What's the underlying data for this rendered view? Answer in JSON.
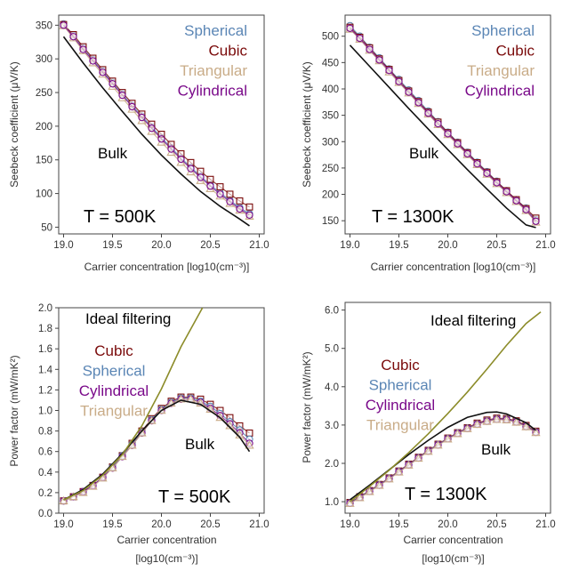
{
  "colors": {
    "Spherical": "#5b86b5",
    "Cubic": "#7a0a0a",
    "Triangular": "#c9ac88",
    "Cylindrical": "#7a0a8a",
    "Bulk": "#111111",
    "Ideal filtering": "#8c8c2a"
  },
  "chart_data": [
    {
      "type": "line",
      "panel": "top-left",
      "ylabel": "Seebeck coefficient (μV/K)",
      "xlabel": "Carrier concentration [log10(cm⁻³)]",
      "xlim": [
        18.95,
        21.05
      ],
      "ylim": [
        40,
        365
      ],
      "xticks": [
        "19.0",
        "19.5",
        "20.0",
        "20.5",
        "21.0"
      ],
      "xtick_values": [
        19.0,
        19.5,
        20.0,
        20.5,
        21.0
      ],
      "yticks": [
        "50",
        "100",
        "150",
        "200",
        "250",
        "300",
        "350"
      ],
      "ytick_values": [
        50,
        100,
        150,
        200,
        250,
        300,
        350
      ],
      "legend": [
        "Spherical",
        "Cubic",
        "Triangular",
        "Cylindrical"
      ],
      "legend_position": "top-right",
      "annotations": [
        "Bulk"
      ],
      "temperature_label": "T = 500K",
      "x": [
        19.0,
        19.1,
        19.2,
        19.3,
        19.4,
        19.5,
        19.6,
        19.7,
        19.8,
        19.9,
        20.0,
        20.1,
        20.2,
        20.3,
        20.4,
        20.5,
        20.6,
        20.7,
        20.8,
        20.9
      ],
      "series": [
        {
          "name": "Spherical",
          "marker": "circle",
          "values": [
            352,
            335,
            316,
            299,
            282,
            265,
            248,
            231,
            215,
            199,
            183,
            168,
            153,
            139,
            126,
            113,
            101,
            90,
            79,
            70
          ]
        },
        {
          "name": "Cubic",
          "marker": "square",
          "values": [
            351,
            336,
            318,
            301,
            284,
            267,
            250,
            234,
            218,
            203,
            188,
            173,
            159,
            146,
            133,
            121,
            110,
            99,
            89,
            80
          ]
        },
        {
          "name": "Triangular",
          "marker": "triangle",
          "values": [
            349,
            331,
            312,
            294,
            277,
            259,
            242,
            225,
            208,
            192,
            176,
            161,
            146,
            132,
            119,
            107,
            96,
            85,
            75,
            66
          ]
        },
        {
          "name": "Cylindrical",
          "marker": "circle",
          "values": [
            350,
            333,
            314,
            297,
            280,
            263,
            246,
            229,
            213,
            197,
            181,
            166,
            151,
            137,
            124,
            111,
            99,
            88,
            77,
            68
          ]
        },
        {
          "name": "Bulk",
          "marker": "none",
          "x": [
            19.0,
            19.2,
            19.4,
            19.6,
            19.8,
            20.0,
            20.2,
            20.4,
            20.6,
            20.8,
            20.9
          ],
          "values": [
            333,
            294,
            257,
            222,
            188,
            157,
            129,
            103,
            81,
            62,
            52
          ]
        }
      ]
    },
    {
      "type": "line",
      "panel": "top-right",
      "ylabel": "Seebeck coefficient (μV/K)",
      "xlabel": "Carrier concentration [log10(cm⁻³)]",
      "xlim": [
        18.95,
        21.05
      ],
      "ylim": [
        125,
        540
      ],
      "xticks": [
        "19.0",
        "19.5",
        "20.0",
        "20.5",
        "21.0"
      ],
      "xtick_values": [
        19.0,
        19.5,
        20.0,
        20.5,
        21.0
      ],
      "yticks": [
        "150",
        "200",
        "250",
        "300",
        "350",
        "400",
        "450",
        "500"
      ],
      "ytick_values": [
        150,
        200,
        250,
        300,
        350,
        400,
        450,
        500
      ],
      "legend": [
        "Spherical",
        "Cubic",
        "Triangular",
        "Cylindrical"
      ],
      "legend_position": "top-right",
      "annotations": [
        "Bulk"
      ],
      "temperature_label": "T = 1300K",
      "x": [
        19.0,
        19.1,
        19.2,
        19.3,
        19.4,
        19.5,
        19.6,
        19.7,
        19.8,
        19.9,
        20.0,
        20.1,
        20.2,
        20.3,
        20.4,
        20.5,
        20.6,
        20.7,
        20.8,
        20.9
      ],
      "series": [
        {
          "name": "Spherical",
          "marker": "circle",
          "values": [
            520,
            500,
            479,
            459,
            438,
            418,
            398,
            378,
            358,
            338,
            318,
            299,
            280,
            261,
            243,
            225,
            207,
            190,
            174,
            152
          ]
        },
        {
          "name": "Cubic",
          "marker": "square",
          "values": [
            517,
            498,
            478,
            457,
            437,
            416,
            396,
            376,
            356,
            337,
            317,
            298,
            279,
            260,
            242,
            224,
            207,
            190,
            173,
            155
          ]
        },
        {
          "name": "Triangular",
          "marker": "triangle",
          "values": [
            513,
            494,
            473,
            453,
            432,
            412,
            392,
            372,
            352,
            332,
            313,
            294,
            275,
            256,
            238,
            220,
            203,
            186,
            169,
            147
          ]
        },
        {
          "name": "Cylindrical",
          "marker": "circle",
          "values": [
            515,
            496,
            475,
            455,
            435,
            414,
            394,
            374,
            354,
            334,
            315,
            296,
            277,
            258,
            240,
            222,
            205,
            188,
            171,
            149
          ]
        },
        {
          "name": "Bulk",
          "marker": "none",
          "x": [
            19.0,
            19.2,
            19.4,
            19.6,
            19.8,
            20.0,
            20.2,
            20.4,
            20.6,
            20.8,
            20.9
          ],
          "values": [
            483,
            443,
            403,
            363,
            324,
            285,
            247,
            210,
            174,
            142,
            137
          ]
        }
      ]
    },
    {
      "type": "line",
      "panel": "bottom-left",
      "ylabel": "Power factor (mW/mK²)",
      "xlabel": "Carrier concentration",
      "xlabel_line2": "[log10(cm⁻³)]",
      "xlim": [
        18.95,
        21.05
      ],
      "ylim": [
        0.0,
        2.0
      ],
      "xticks": [
        "19.0",
        "19.5",
        "20.0",
        "20.5",
        "21.0"
      ],
      "xtick_values": [
        19.0,
        19.5,
        20.0,
        20.5,
        21.0
      ],
      "yticks": [
        "0.0",
        "0.2",
        "0.4",
        "0.6",
        "0.8",
        "1.0",
        "1.2",
        "1.4",
        "1.6",
        "1.8",
        "2.0"
      ],
      "ytick_values": [
        0.0,
        0.2,
        0.4,
        0.6,
        0.8,
        1.0,
        1.2,
        1.4,
        1.6,
        1.8,
        2.0
      ],
      "legend": [
        "Cubic",
        "Spherical",
        "Cylindrical",
        "Triangular"
      ],
      "legend_position": "left",
      "annotations": [
        "Ideal filtering",
        "Bulk"
      ],
      "temperature_label": "T = 500K",
      "x": [
        19.0,
        19.1,
        19.2,
        19.3,
        19.4,
        19.5,
        19.6,
        19.7,
        19.8,
        19.9,
        20.0,
        20.1,
        20.2,
        20.3,
        20.4,
        20.5,
        20.6,
        20.7,
        20.8,
        20.9
      ],
      "series": [
        {
          "name": "Cubic",
          "marker": "square",
          "values": [
            0.12,
            0.16,
            0.21,
            0.27,
            0.35,
            0.45,
            0.56,
            0.68,
            0.8,
            0.92,
            1.02,
            1.09,
            1.13,
            1.13,
            1.11,
            1.06,
            1.0,
            0.93,
            0.85,
            0.78
          ]
        },
        {
          "name": "Spherical",
          "marker": "circle",
          "values": [
            0.12,
            0.16,
            0.21,
            0.27,
            0.35,
            0.45,
            0.56,
            0.67,
            0.79,
            0.91,
            1.01,
            1.08,
            1.12,
            1.12,
            1.09,
            1.04,
            0.97,
            0.89,
            0.81,
            0.72
          ]
        },
        {
          "name": "Cylindrical",
          "marker": "circle",
          "values": [
            0.12,
            0.16,
            0.21,
            0.27,
            0.35,
            0.44,
            0.55,
            0.66,
            0.78,
            0.9,
            1.0,
            1.07,
            1.11,
            1.11,
            1.08,
            1.02,
            0.95,
            0.87,
            0.78,
            0.68
          ]
        },
        {
          "name": "Triangular",
          "marker": "triangle",
          "values": [
            0.12,
            0.16,
            0.2,
            0.26,
            0.34,
            0.44,
            0.55,
            0.66,
            0.78,
            0.9,
            1.0,
            1.07,
            1.11,
            1.11,
            1.07,
            1.01,
            0.93,
            0.85,
            0.76,
            0.66
          ]
        },
        {
          "name": "Bulk",
          "marker": "none",
          "x": [
            19.0,
            19.2,
            19.4,
            19.6,
            19.8,
            20.0,
            20.2,
            20.4,
            20.6,
            20.8,
            20.9
          ],
          "values": [
            0.13,
            0.23,
            0.38,
            0.58,
            0.8,
            1.0,
            1.1,
            1.06,
            0.93,
            0.74,
            0.6
          ]
        },
        {
          "name": "Ideal filtering",
          "marker": "none",
          "x": [
            19.0,
            19.2,
            19.4,
            19.6,
            19.8,
            20.0,
            20.2,
            20.42
          ],
          "values": [
            0.13,
            0.22,
            0.37,
            0.57,
            0.85,
            1.21,
            1.62,
            2.0
          ]
        }
      ]
    },
    {
      "type": "line",
      "panel": "bottom-right",
      "ylabel": "Power factor (mW/mK²)",
      "xlabel": "Carrier concentration",
      "xlabel_line2": "[log10(cm⁻³)]",
      "xlim": [
        18.95,
        21.05
      ],
      "ylim": [
        0.7,
        6.2
      ],
      "xticks": [
        "19.0",
        "19.5",
        "20.0",
        "20.5",
        "21.0"
      ],
      "xtick_values": [
        19.0,
        19.5,
        20.0,
        20.5,
        21.0
      ],
      "yticks": [
        "1.0",
        "2.0",
        "3.0",
        "4.0",
        "5.0",
        "6.0"
      ],
      "ytick_values": [
        1.0,
        2.0,
        3.0,
        4.0,
        5.0,
        6.0
      ],
      "legend": [
        "Cubic",
        "Spherical",
        "Cylindrical",
        "Triangular"
      ],
      "legend_position": "left",
      "annotations": [
        "Ideal filtering",
        "Bulk"
      ],
      "temperature_label": "T = 1300K",
      "x": [
        19.0,
        19.1,
        19.2,
        19.3,
        19.4,
        19.5,
        19.6,
        19.7,
        19.8,
        19.9,
        20.0,
        20.1,
        20.2,
        20.3,
        20.4,
        20.5,
        20.6,
        20.7,
        20.8,
        20.9
      ],
      "series": [
        {
          "name": "Cubic",
          "marker": "square",
          "values": [
            0.98,
            1.13,
            1.29,
            1.45,
            1.62,
            1.8,
            1.98,
            2.16,
            2.34,
            2.5,
            2.66,
            2.8,
            2.93,
            3.05,
            3.13,
            3.18,
            3.17,
            3.11,
            2.99,
            2.84
          ]
        },
        {
          "name": "Spherical",
          "marker": "circle",
          "values": [
            0.97,
            1.12,
            1.28,
            1.44,
            1.61,
            1.79,
            1.97,
            2.15,
            2.33,
            2.49,
            2.65,
            2.79,
            2.92,
            3.03,
            3.11,
            3.16,
            3.15,
            3.09,
            2.97,
            2.82
          ]
        },
        {
          "name": "Cylindrical",
          "marker": "circle",
          "values": [
            0.96,
            1.11,
            1.27,
            1.43,
            1.6,
            1.78,
            1.96,
            2.14,
            2.32,
            2.48,
            2.64,
            2.78,
            2.91,
            3.02,
            3.1,
            3.15,
            3.14,
            3.08,
            2.96,
            2.81
          ]
        },
        {
          "name": "Triangular",
          "marker": "triangle",
          "values": [
            0.95,
            1.1,
            1.26,
            1.42,
            1.59,
            1.77,
            1.95,
            2.13,
            2.31,
            2.47,
            2.63,
            2.77,
            2.9,
            3.01,
            3.09,
            3.14,
            3.13,
            3.07,
            2.95,
            2.8
          ]
        },
        {
          "name": "Bulk",
          "marker": "none",
          "x": [
            19.0,
            19.2,
            19.4,
            19.6,
            19.8,
            20.0,
            20.2,
            20.4,
            20.5,
            20.6,
            20.8,
            20.9
          ],
          "values": [
            1.05,
            1.43,
            1.83,
            2.23,
            2.6,
            2.94,
            3.2,
            3.33,
            3.34,
            3.29,
            3.06,
            2.86
          ]
        },
        {
          "name": "Ideal filtering",
          "marker": "none",
          "x": [
            19.0,
            19.2,
            19.4,
            19.6,
            19.8,
            20.0,
            20.2,
            20.4,
            20.6,
            20.8,
            20.95
          ],
          "values": [
            1.0,
            1.4,
            1.82,
            2.28,
            2.77,
            3.3,
            3.86,
            4.46,
            5.08,
            5.65,
            5.95
          ]
        }
      ]
    }
  ]
}
